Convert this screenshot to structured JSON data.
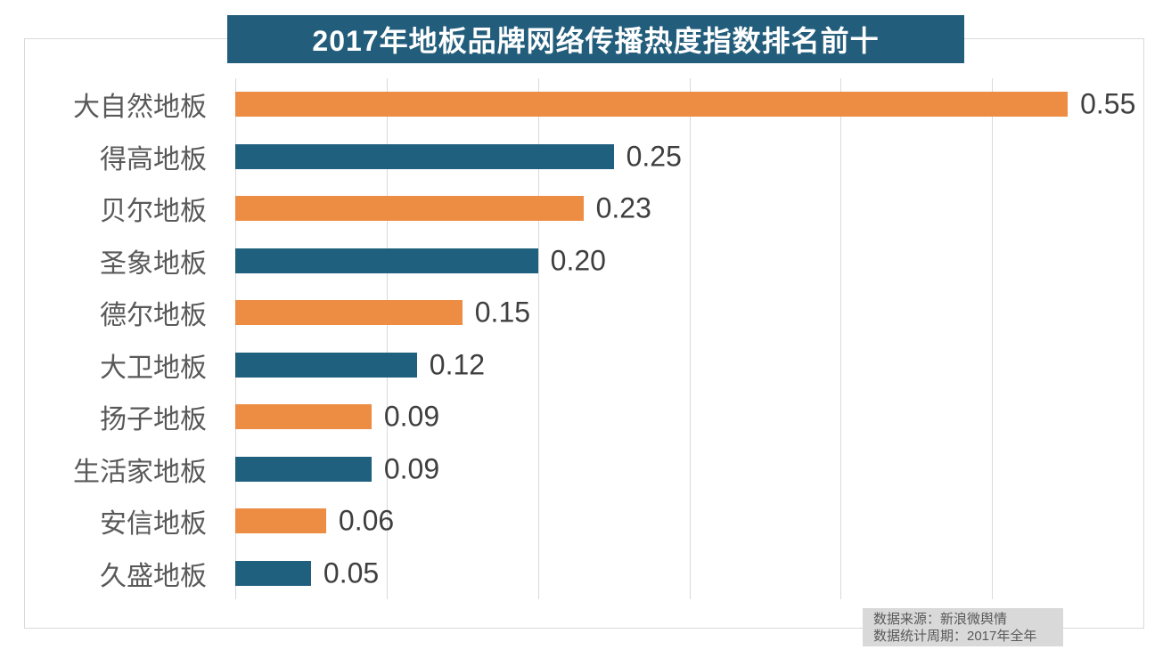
{
  "chart_data": {
    "type": "bar",
    "orientation": "horizontal",
    "title": "2017年地板品牌网络传播热度指数排名前十",
    "categories": [
      "大自然地板",
      "得高地板",
      "贝尔地板",
      "圣象地板",
      "德尔地板",
      "大卫地板",
      "扬子地板",
      "生活家地板",
      "安信地板",
      "久盛地板"
    ],
    "values": [
      0.55,
      0.25,
      0.23,
      0.2,
      0.15,
      0.12,
      0.09,
      0.09,
      0.06,
      0.05
    ],
    "value_labels": [
      "0.55",
      "0.25",
      "0.23",
      "0.20",
      "0.15",
      "0.12",
      "0.09",
      "0.09",
      "0.06",
      "0.05"
    ],
    "xlabel": "",
    "ylabel": "",
    "xlim": [
      0,
      0.6
    ],
    "grid_interval": 0.1,
    "grid": "vertical-only",
    "legend_position": "none",
    "bar_color_pattern": "alternating"
  },
  "source": {
    "line1": "数据来源：新浪微舆情",
    "line2": "数据统计周期：2017年全年"
  },
  "colors": {
    "orange_bar": "#ED8C43",
    "teal_bar": "#20607F",
    "banner_bg": "#235D7C",
    "banner_text": "#FFFFFF",
    "gridline": "#D9D9D9",
    "category_text": "#595959",
    "value_text": "#3F3F3F",
    "source_bg": "#D9D9D9",
    "source_text": "#595959"
  }
}
